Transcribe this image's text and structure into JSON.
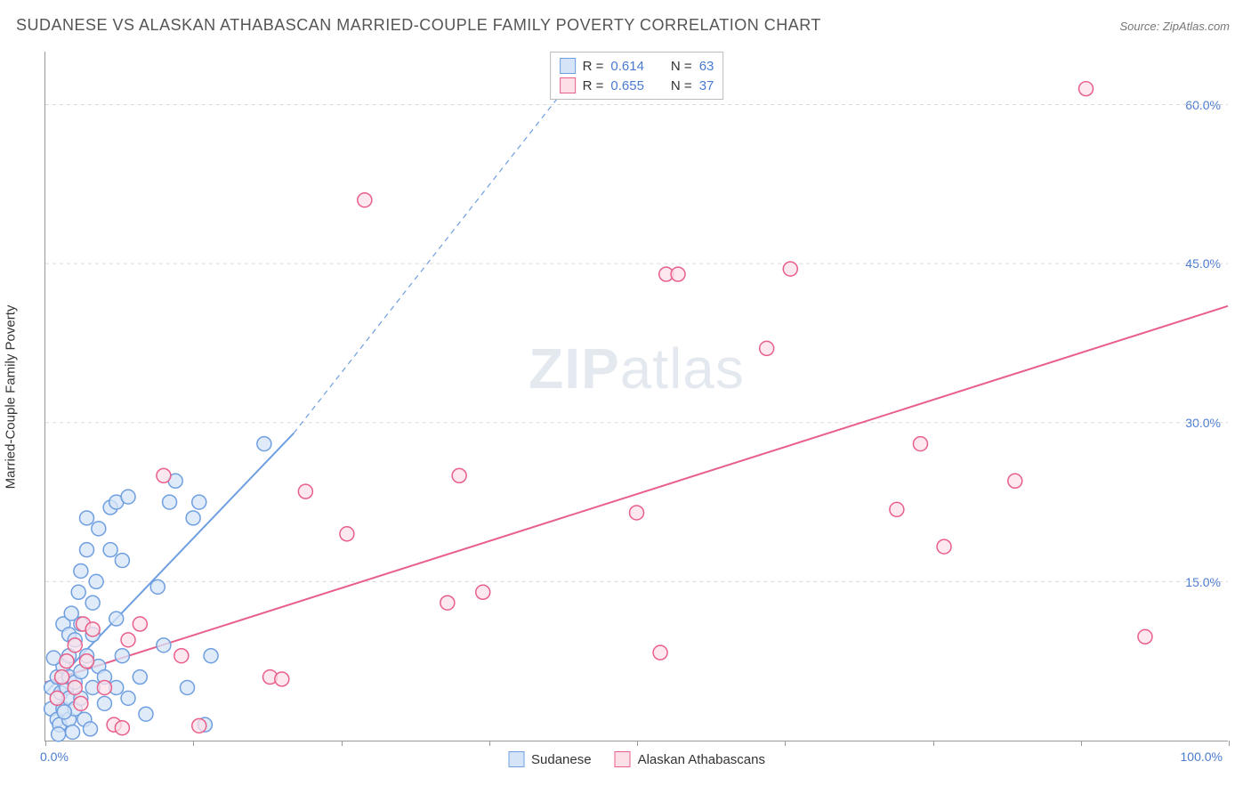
{
  "title": "SUDANESE VS ALASKAN ATHABASCAN MARRIED-COUPLE FAMILY POVERTY CORRELATION CHART",
  "source_label": "Source: ZipAtlas.com",
  "ylabel": "Married-Couple Family Poverty",
  "watermark_bold": "ZIP",
  "watermark_rest": "atlas",
  "chart": {
    "type": "scatter",
    "xlim": [
      0,
      100
    ],
    "ylim": [
      0,
      65
    ],
    "x_min_label": "0.0%",
    "x_max_label": "100.0%",
    "x_tick_positions": [
      0,
      12.5,
      25,
      37.5,
      50,
      62.5,
      75,
      87.5,
      100
    ],
    "y_gridlines": [
      15,
      30,
      45,
      60
    ],
    "y_tick_labels": [
      "15.0%",
      "30.0%",
      "45.0%",
      "60.0%"
    ],
    "background_color": "#ffffff",
    "grid_color": "#d9d9d9",
    "axis_color": "#999999",
    "tick_label_color": "#4a7bd0",
    "marker_radius": 8,
    "marker_stroke_width": 1.5,
    "trend_line_width": 2,
    "title_fontsize": 18,
    "label_fontsize": 15,
    "tick_fontsize": 14
  },
  "series": [
    {
      "name": "Sudanese",
      "color_fill": "#d6e4f7",
      "color_stroke": "#6f9fe0",
      "R": "0.614",
      "N": "63",
      "trend": {
        "x1": 0,
        "y1": 4.5,
        "x2": 21,
        "y2": 29,
        "dashed_ext": {
          "x2": 45,
          "y2": 63
        }
      },
      "points": [
        [
          0.5,
          3
        ],
        [
          0.5,
          5
        ],
        [
          1,
          2
        ],
        [
          1,
          4
        ],
        [
          1,
          6
        ],
        [
          1.2,
          1.5
        ],
        [
          1.3,
          4.5
        ],
        [
          1.5,
          3
        ],
        [
          1.5,
          7
        ],
        [
          1.5,
          11
        ],
        [
          1.8,
          5
        ],
        [
          2,
          2
        ],
        [
          2,
          4
        ],
        [
          2,
          6
        ],
        [
          2,
          8
        ],
        [
          2,
          10
        ],
        [
          2.2,
          12
        ],
        [
          2.5,
          3
        ],
        [
          2.5,
          5.5
        ],
        [
          2.5,
          9.5
        ],
        [
          2.8,
          14
        ],
        [
          3,
          4
        ],
        [
          3,
          6.5
        ],
        [
          3,
          11
        ],
        [
          3,
          16
        ],
        [
          3.3,
          2
        ],
        [
          3.5,
          8
        ],
        [
          3.5,
          18
        ],
        [
          3.5,
          21
        ],
        [
          4,
          5
        ],
        [
          4,
          10
        ],
        [
          4,
          13
        ],
        [
          4.5,
          7
        ],
        [
          4.5,
          20
        ],
        [
          5,
          3.5
        ],
        [
          5,
          6
        ],
        [
          5.5,
          22
        ],
        [
          5.5,
          18
        ],
        [
          6,
          5
        ],
        [
          6,
          11.5
        ],
        [
          6,
          22.5
        ],
        [
          6.5,
          8
        ],
        [
          6.5,
          17
        ],
        [
          7,
          4
        ],
        [
          7,
          23
        ],
        [
          8,
          6
        ],
        [
          8.5,
          2.5
        ],
        [
          9.5,
          14.5
        ],
        [
          10,
          9
        ],
        [
          10.5,
          22.5
        ],
        [
          11,
          24.5
        ],
        [
          12,
          5
        ],
        [
          12.5,
          21
        ],
        [
          13,
          22.5
        ],
        [
          13.5,
          1.5
        ],
        [
          14,
          8
        ],
        [
          18.5,
          28
        ],
        [
          2.3,
          0.8
        ],
        [
          1.1,
          0.6
        ],
        [
          0.7,
          7.8
        ],
        [
          3.8,
          1.1
        ],
        [
          4.3,
          15
        ],
        [
          1.6,
          2.7
        ]
      ]
    },
    {
      "name": "Alaskan Athabascans",
      "color_fill": "#fbe0e8",
      "color_stroke": "#e85f8a",
      "R": "0.655",
      "N": "37",
      "trend": {
        "x1": 0,
        "y1": 5.5,
        "x2": 100,
        "y2": 41
      },
      "points": [
        [
          1,
          4
        ],
        [
          1.4,
          6
        ],
        [
          1.8,
          7.5
        ],
        [
          2.5,
          5
        ],
        [
          2.5,
          9
        ],
        [
          3,
          3.5
        ],
        [
          3.2,
          11
        ],
        [
          3.5,
          7.5
        ],
        [
          4,
          10.5
        ],
        [
          5,
          5
        ],
        [
          5.8,
          1.5
        ],
        [
          6.5,
          1.2
        ],
        [
          7,
          9.5
        ],
        [
          8,
          11
        ],
        [
          10,
          25
        ],
        [
          11.5,
          8
        ],
        [
          13,
          1.4
        ],
        [
          19,
          6
        ],
        [
          20,
          5.8
        ],
        [
          22,
          23.5
        ],
        [
          25.5,
          19.5
        ],
        [
          27,
          51
        ],
        [
          34,
          13
        ],
        [
          35,
          25
        ],
        [
          37,
          14
        ],
        [
          50,
          21.5
        ],
        [
          52,
          8.3
        ],
        [
          52.5,
          44
        ],
        [
          53.5,
          44
        ],
        [
          61,
          37
        ],
        [
          63,
          44.5
        ],
        [
          72,
          21.8
        ],
        [
          74,
          28
        ],
        [
          76,
          18.3
        ],
        [
          82,
          24.5
        ],
        [
          88,
          61.5
        ],
        [
          93,
          9.8
        ]
      ]
    }
  ],
  "legend_top_labels": {
    "R": "R =",
    "N": "N ="
  },
  "legend_bottom": [
    "Sudanese",
    "Alaskan Athabascans"
  ]
}
